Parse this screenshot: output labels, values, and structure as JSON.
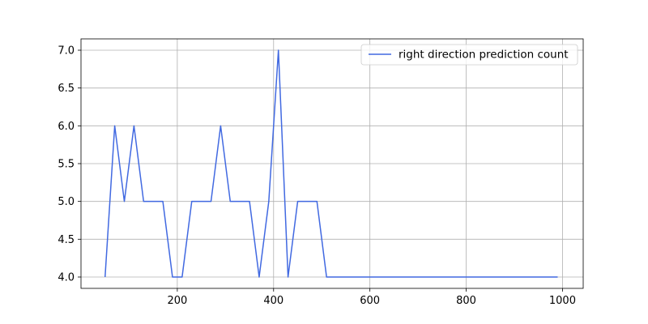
{
  "chart_data": {
    "type": "line",
    "title": "",
    "xlabel": "",
    "ylabel": "",
    "xlim": [
      0,
      1043
    ],
    "ylim": [
      3.85,
      7.15
    ],
    "x_ticks": [
      200,
      400,
      600,
      800,
      1000
    ],
    "y_ticks": [
      4.0,
      4.5,
      5.0,
      5.5,
      6.0,
      6.5,
      7.0
    ],
    "x_tick_labels": [
      "200",
      "400",
      "600",
      "800",
      "1000"
    ],
    "y_tick_labels": [
      "4.0",
      "4.5",
      "5.0",
      "5.5",
      "6.0",
      "6.5",
      "7.0"
    ],
    "grid": true,
    "legend_position": "top-right",
    "series": [
      {
        "name": "right direction prediction count",
        "color": "#4169e1",
        "x": [
          50,
          70,
          90,
          110,
          130,
          150,
          170,
          190,
          210,
          230,
          250,
          270,
          290,
          310,
          330,
          350,
          370,
          390,
          410,
          430,
          450,
          470,
          490,
          510,
          530,
          550,
          570,
          590,
          610,
          630,
          650,
          670,
          690,
          710,
          730,
          750,
          770,
          790,
          810,
          830,
          850,
          870,
          890,
          910,
          930,
          950,
          970,
          990
        ],
        "y": [
          4,
          6,
          5,
          6,
          5,
          5,
          5,
          4,
          4,
          5,
          5,
          5,
          6,
          5,
          5,
          5,
          4,
          5,
          7,
          4,
          5,
          5,
          5,
          4,
          4,
          4,
          4,
          4,
          4,
          4,
          4,
          4,
          4,
          4,
          4,
          4,
          4,
          4,
          4,
          4,
          4,
          4,
          4,
          4,
          4,
          4,
          4,
          4
        ]
      }
    ]
  }
}
